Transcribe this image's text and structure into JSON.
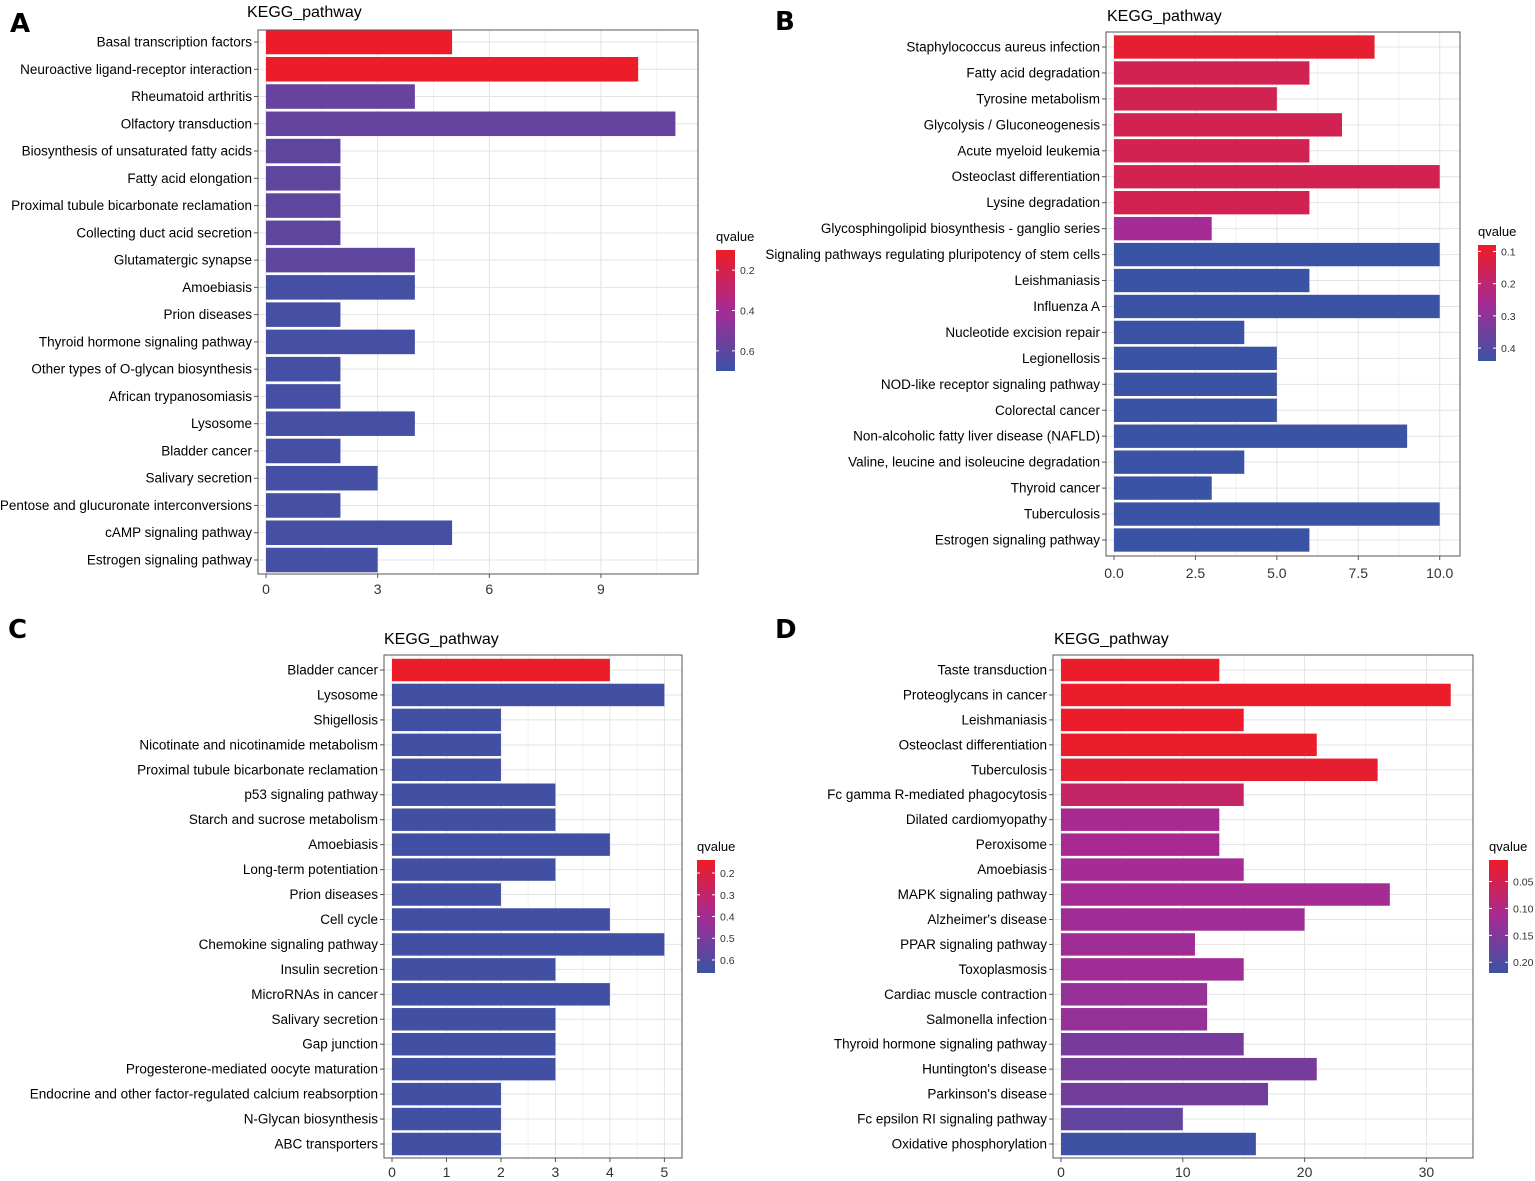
{
  "colors": {
    "red": "#ee1c25",
    "mid": "#a52b95",
    "blue": "#3a53a4"
  },
  "chart_data": [
    {
      "panel": "A",
      "type": "bar",
      "orientation": "horizontal",
      "title": "KEGG_pathway",
      "xlim": [
        0,
        11.5
      ],
      "xticks": [
        0,
        3,
        6,
        9
      ],
      "xtick_labels": [
        "0",
        "3",
        "6",
        "9"
      ],
      "categories": [
        "Basal transcription factors",
        "Neuroactive ligand-receptor interaction",
        "Rheumatoid arthritis",
        "Olfactory transduction",
        "Biosynthesis of unsaturated fatty acids",
        "Fatty acid elongation",
        "Proximal tubule bicarbonate reclamation",
        "Collecting duct acid secretion",
        "Glutamatergic synapse",
        "Amoebiasis",
        "Prion diseases",
        "Thyroid hormone signaling pathway",
        "Other types of O-glycan biosynthesis",
        "African trypanosomiasis",
        "Lysosome",
        "Bladder cancer",
        "Salivary secretion",
        "Pentose and glucuronate interconversions",
        "cAMP signaling pathway",
        "Estrogen signaling pathway"
      ],
      "values": [
        5,
        10,
        4,
        11,
        2,
        2,
        2,
        2,
        4,
        4,
        2,
        4,
        2,
        2,
        4,
        2,
        3,
        2,
        5,
        3
      ],
      "qvalues": [
        0.11,
        0.11,
        0.57,
        0.58,
        0.6,
        0.6,
        0.6,
        0.6,
        0.6,
        0.67,
        0.67,
        0.67,
        0.67,
        0.67,
        0.67,
        0.67,
        0.67,
        0.67,
        0.67,
        0.67
      ],
      "legend": {
        "title": "qvalue",
        "range": [
          0.1,
          0.7
        ],
        "ticks": [
          0.2,
          0.4,
          0.6
        ],
        "tick_labels": [
          "0.2",
          "0.4",
          "0.6"
        ]
      }
    },
    {
      "panel": "B",
      "type": "bar",
      "orientation": "horizontal",
      "title": "KEGG_pathway",
      "xlim": [
        0,
        10.5
      ],
      "xticks": [
        0,
        2.5,
        5,
        7.5,
        10
      ],
      "xtick_labels": [
        "0.0",
        "2.5",
        "5.0",
        "7.5",
        "10.0"
      ],
      "categories": [
        "Staphylococcus aureus infection",
        "Fatty acid degradation",
        "Tyrosine metabolism",
        "Glycolysis / Gluconeogenesis",
        "Acute myeloid leukemia",
        "Osteoclast differentiation",
        "Lysine degradation",
        "Glycosphingolipid biosynthesis - ganglio series",
        "Signaling pathways regulating pluripotency of stem cells",
        "Leishmaniasis",
        "Influenza A",
        "Nucleotide excision repair",
        "Legionellosis",
        "NOD-like receptor signaling pathway",
        "Colorectal cancer",
        "Non-alcoholic fatty liver disease (NAFLD)",
        "Valine, leucine and isoleucine degradation",
        "Thyroid cancer",
        "Tuberculosis",
        "Estrogen signaling pathway"
      ],
      "values": [
        8,
        6,
        5,
        7,
        6,
        10,
        6,
        3,
        10,
        6,
        10,
        4,
        5,
        5,
        5,
        9,
        4,
        3,
        10,
        6
      ],
      "qvalues": [
        0.1,
        0.15,
        0.15,
        0.15,
        0.15,
        0.15,
        0.15,
        0.26,
        0.44,
        0.44,
        0.44,
        0.44,
        0.44,
        0.44,
        0.44,
        0.44,
        0.44,
        0.44,
        0.44,
        0.44
      ],
      "legend": {
        "title": "qvalue",
        "range": [
          0.08,
          0.44
        ],
        "ticks": [
          0.1,
          0.2,
          0.3,
          0.4
        ],
        "tick_labels": [
          "0.1",
          "0.2",
          "0.3",
          "0.4"
        ]
      }
    },
    {
      "panel": "C",
      "type": "bar",
      "orientation": "horizontal",
      "title": "KEGG_pathway",
      "xlim": [
        0,
        5.25
      ],
      "xticks": [
        0,
        1,
        2,
        3,
        4,
        5
      ],
      "xtick_labels": [
        "0",
        "1",
        "2",
        "3",
        "4",
        "5"
      ],
      "categories": [
        "Bladder cancer",
        "Lysosome",
        "Shigellosis",
        "Nicotinate and nicotinamide metabolism",
        "Proximal tubule bicarbonate reclamation",
        "p53 signaling pathway",
        "Starch and sucrose metabolism",
        "Amoebiasis",
        "Long-term potentiation",
        "Prion diseases",
        "Cell cycle",
        "Chemokine signaling pathway",
        "Insulin secretion",
        "MicroRNAs in cancer",
        "Salivary secretion",
        "Gap junction",
        "Progesterone-mediated oocyte maturation",
        "Endocrine and other factor-regulated calcium reabsorption",
        "N-Glycan biosynthesis",
        "ABC transporters"
      ],
      "values": [
        4,
        5,
        2,
        2,
        2,
        3,
        3,
        4,
        3,
        2,
        4,
        5,
        3,
        4,
        3,
        3,
        3,
        2,
        2,
        2
      ],
      "qvalues": [
        0.15,
        0.64,
        0.64,
        0.64,
        0.64,
        0.64,
        0.64,
        0.64,
        0.64,
        0.64,
        0.64,
        0.64,
        0.64,
        0.64,
        0.64,
        0.64,
        0.64,
        0.64,
        0.64,
        0.64
      ],
      "legend": {
        "title": "qvalue",
        "range": [
          0.14,
          0.66
        ],
        "ticks": [
          0.2,
          0.3,
          0.4,
          0.5,
          0.6
        ],
        "tick_labels": [
          "0.2",
          "0.3",
          "0.4",
          "0.5",
          "0.6"
        ]
      }
    },
    {
      "panel": "D",
      "type": "bar",
      "orientation": "horizontal",
      "title": "KEGG_pathway",
      "xlim": [
        0,
        33.5
      ],
      "xticks": [
        0,
        10,
        20,
        30
      ],
      "xtick_labels": [
        "0",
        "10",
        "20",
        "30"
      ],
      "categories": [
        "Taste transduction",
        "Proteoglycans in cancer",
        "Leishmaniasis",
        "Osteoclast differentiation",
        "Tuberculosis",
        "Fc gamma R-mediated phagocytosis",
        "Dilated cardiomyopathy",
        "Peroxisome",
        "Amoebiasis",
        "MAPK signaling pathway",
        "Alzheimer's disease",
        "PPAR signaling pathway",
        "Toxoplasmosis",
        "Cardiac muscle contraction",
        "Salmonella infection",
        "Thyroid hormone signaling pathway",
        "Huntington's disease",
        "Parkinson's disease",
        "Fc epsilon RI signaling pathway",
        "Oxidative phosphorylation"
      ],
      "values": [
        13,
        32,
        15,
        21,
        26,
        15,
        13,
        13,
        15,
        27,
        20,
        11,
        15,
        12,
        12,
        15,
        21,
        17,
        10,
        16
      ],
      "qvalues": [
        0.015,
        0.015,
        0.015,
        0.015,
        0.02,
        0.07,
        0.11,
        0.11,
        0.115,
        0.115,
        0.12,
        0.12,
        0.12,
        0.13,
        0.13,
        0.16,
        0.16,
        0.165,
        0.18,
        0.215
      ],
      "legend": {
        "title": "qvalue",
        "range": [
          0.01,
          0.22
        ],
        "ticks": [
          0.05,
          0.1,
          0.15,
          0.2
        ],
        "tick_labels": [
          "0.05",
          "0.10",
          "0.15",
          "0.20"
        ]
      }
    }
  ]
}
